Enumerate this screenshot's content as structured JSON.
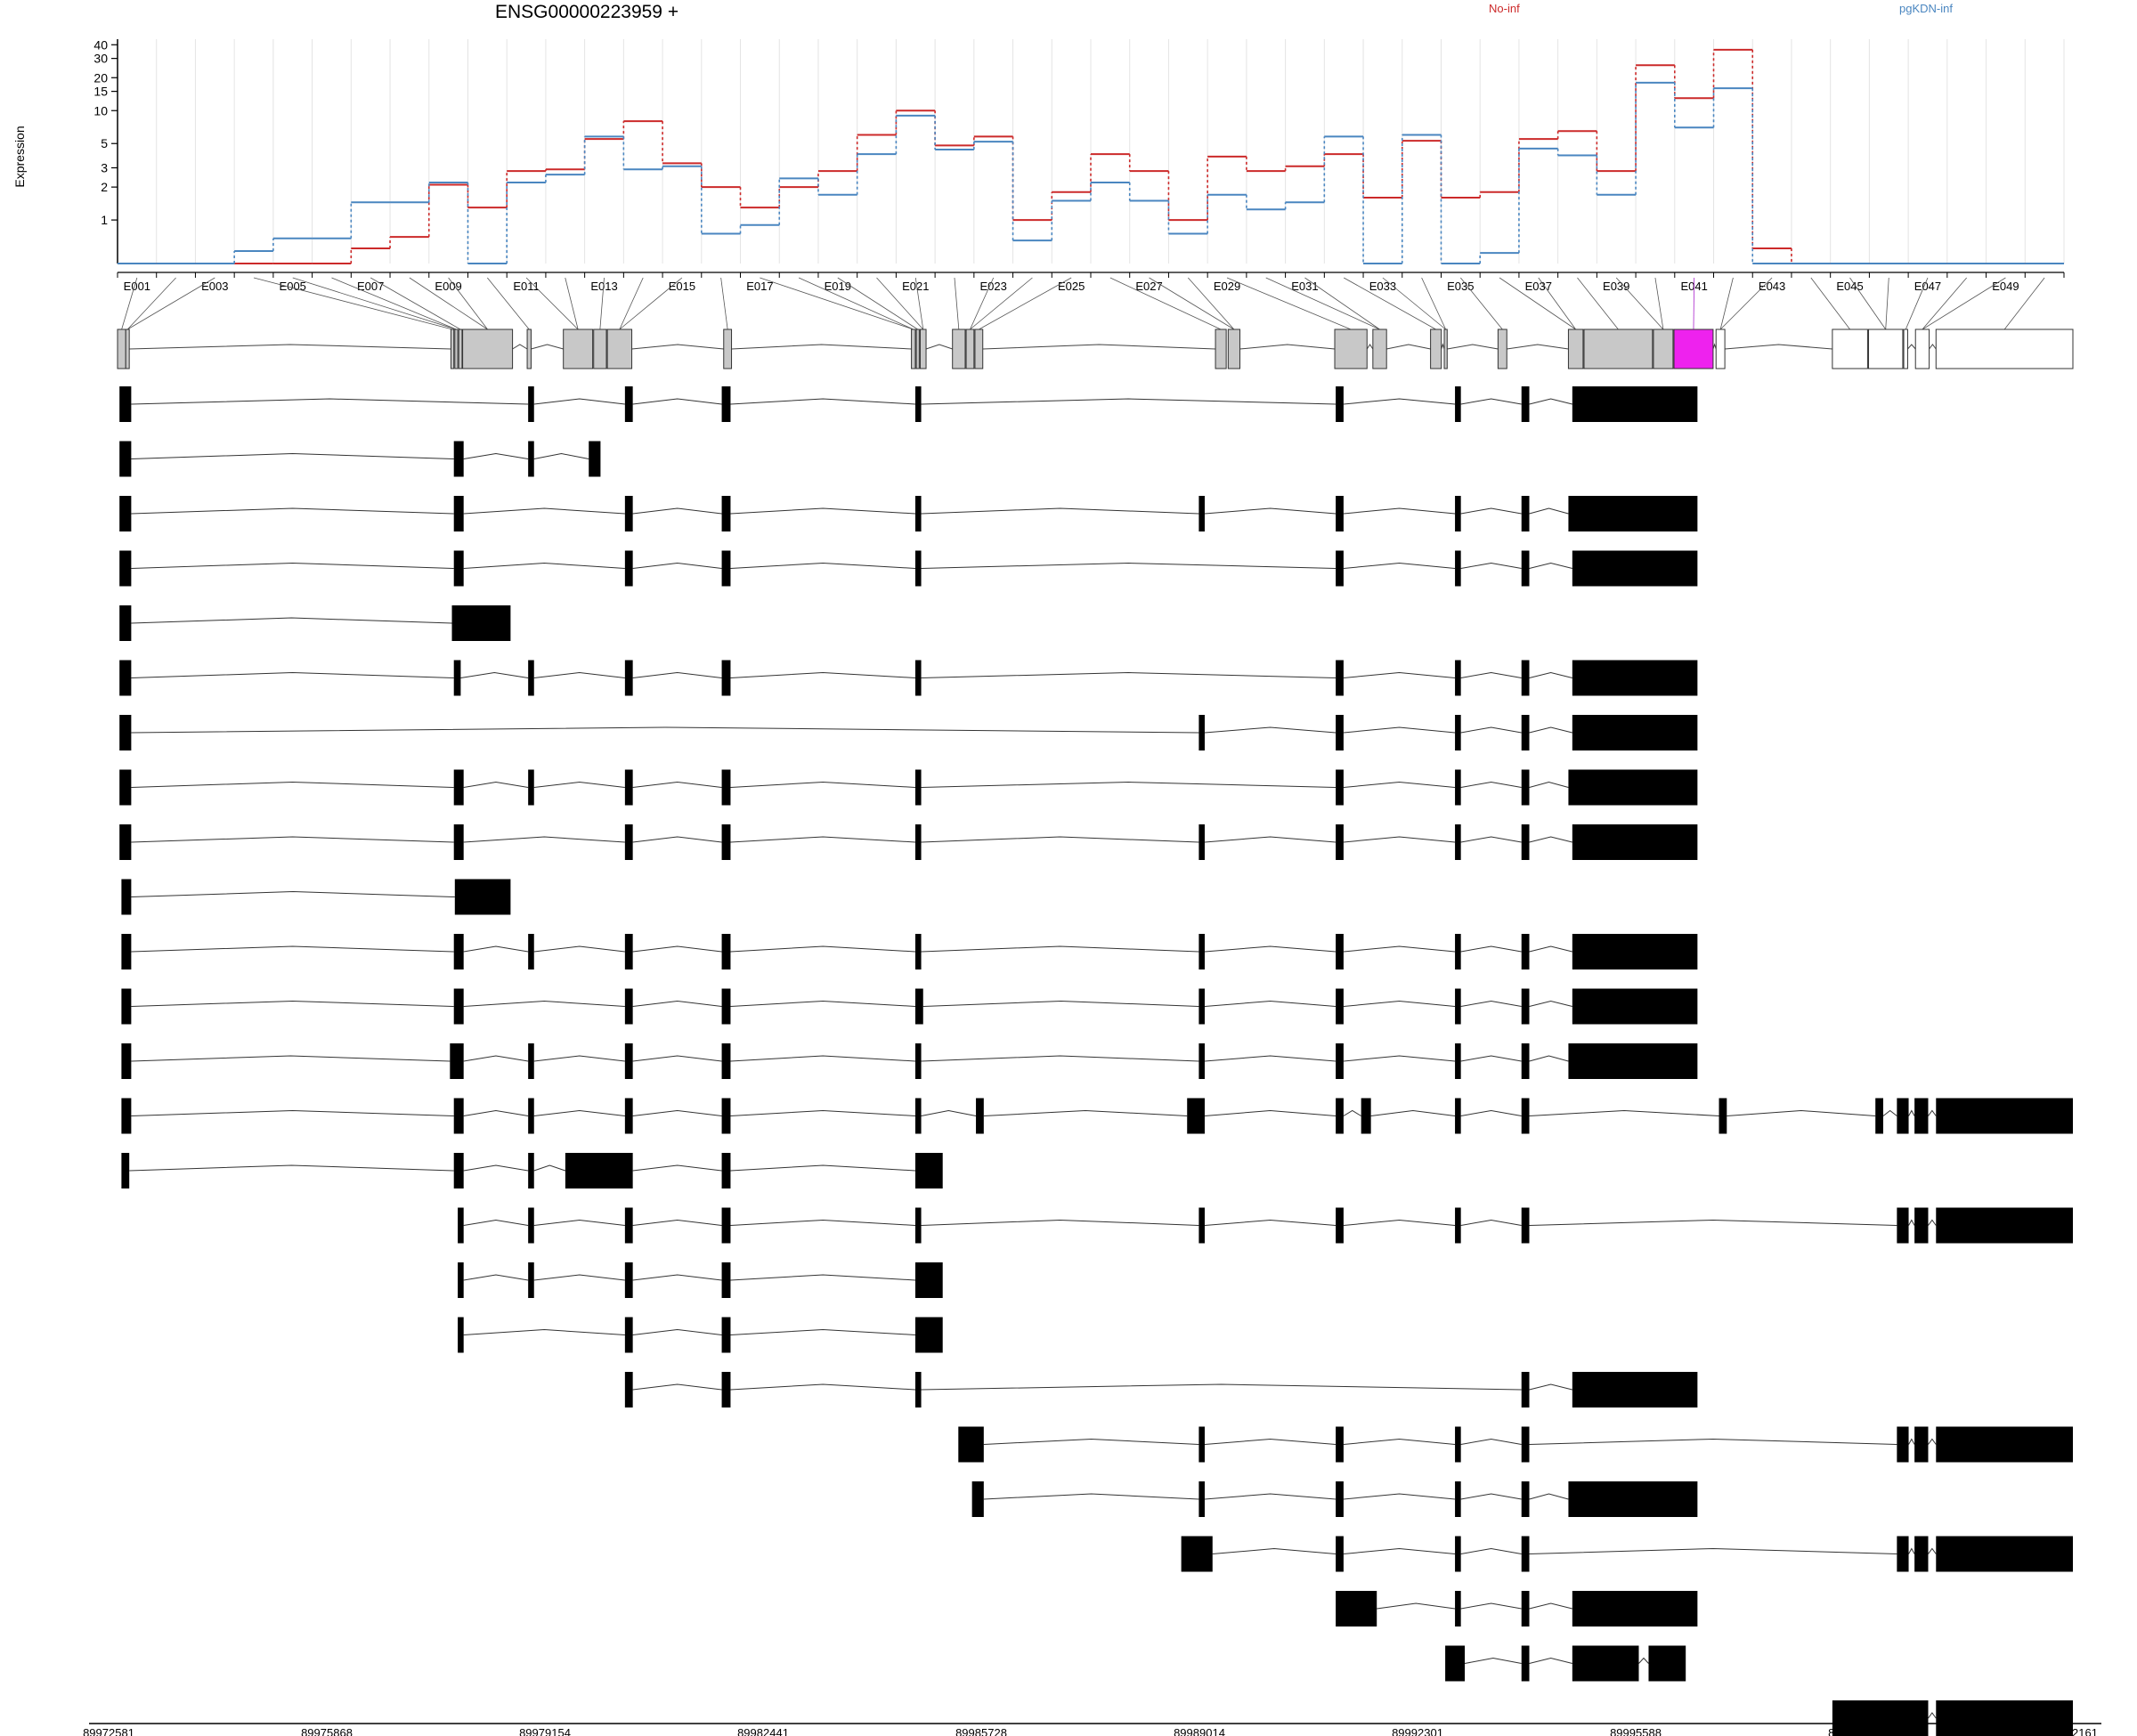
{
  "header": {
    "title": "ENSG00000223959 +",
    "legend_a": "No-inf",
    "legend_b": "pgKDN-inf"
  },
  "colors": {
    "no_inf": "#cc2a2a",
    "pgkdn_inf": "#4a86c0",
    "exon_tested": "#c8c8c8",
    "exon_untested": "#ffffff",
    "exon_significant": "#ee22ee",
    "transcript_block": "#000000"
  },
  "chart_data": {
    "type": "line",
    "title": "ENSG00000223959 +",
    "ylabel": "Expression",
    "yscale": "log",
    "ylim": [
      0.4,
      45
    ],
    "yticks": [
      1,
      2,
      3,
      5,
      10,
      15,
      20,
      30,
      40
    ],
    "grid": "vertical, light grey",
    "legend": "top-right",
    "exon_labels_shown": [
      "E001",
      "E003",
      "E005",
      "E007",
      "E009",
      "E011",
      "E013",
      "E015",
      "E017",
      "E019",
      "E021",
      "E023",
      "E025",
      "E027",
      "E029",
      "E031",
      "E033",
      "E035",
      "E037",
      "E039",
      "E041",
      "E043",
      "E045",
      "E047",
      "E049"
    ],
    "series": [
      {
        "name": "No-inf",
        "color": "#cc2a2a",
        "values": [
          0.4,
          0.4,
          0.4,
          0.4,
          0.4,
          0.4,
          0.55,
          0.7,
          2.1,
          1.3,
          2.8,
          2.9,
          5.5,
          8.0,
          3.3,
          2.0,
          1.3,
          2.0,
          2.8,
          6.0,
          10.0,
          4.8,
          5.8,
          1.0,
          1.8,
          4.0,
          2.8,
          1.0,
          3.8,
          2.8,
          3.1,
          4.0,
          1.6,
          5.3,
          1.6,
          1.8,
          5.5,
          6.5,
          2.8,
          26.0,
          13.0,
          36.0,
          0.55,
          0.4,
          0.4,
          0.4,
          0.4,
          0.4,
          0.4,
          0.4
        ]
      },
      {
        "name": "pgKDN-inf",
        "color": "#4a86c0",
        "values": [
          0.4,
          0.4,
          0.4,
          0.52,
          0.68,
          0.68,
          1.45,
          1.45,
          2.2,
          0.4,
          2.2,
          2.6,
          5.8,
          2.9,
          3.1,
          0.75,
          0.9,
          2.4,
          1.7,
          4.0,
          9.0,
          4.4,
          5.2,
          0.65,
          1.5,
          2.2,
          1.5,
          0.75,
          1.7,
          1.25,
          1.45,
          5.8,
          0.4,
          6.0,
          0.4,
          0.5,
          4.5,
          3.9,
          1.7,
          18.0,
          7.0,
          16.0,
          0.4,
          0.4,
          0.4,
          0.4,
          0.4,
          0.4,
          0.4,
          0.4
        ]
      }
    ],
    "genomic_axis_labels": [
      "89972581",
      "89975868",
      "89979154",
      "89982441",
      "89985728",
      "89989014",
      "89992301",
      "89995588",
      "89998874",
      "90002161"
    ],
    "gene_model": {
      "exons": [
        [
          0.0,
          0.42,
          "tested"
        ],
        [
          0.42,
          0.6,
          "tested"
        ],
        [
          17.05,
          17.2,
          "tested"
        ],
        [
          17.25,
          17.4,
          "tested"
        ],
        [
          17.45,
          17.62,
          "tested"
        ],
        [
          17.65,
          20.2,
          "tested"
        ],
        [
          20.95,
          21.15,
          "tested"
        ],
        [
          22.8,
          24.3,
          "tested"
        ],
        [
          24.35,
          25.0,
          "tested"
        ],
        [
          25.05,
          26.3,
          "tested"
        ],
        [
          31.0,
          31.4,
          "tested"
        ],
        [
          40.6,
          40.8,
          "tested"
        ],
        [
          40.85,
          41.0,
          "tested"
        ],
        [
          41.05,
          41.35,
          "tested"
        ],
        [
          42.7,
          43.35,
          "tested"
        ],
        [
          43.4,
          43.8,
          "tested"
        ],
        [
          43.85,
          44.25,
          "tested"
        ],
        [
          56.15,
          56.7,
          "tested"
        ],
        [
          56.8,
          57.4,
          "tested"
        ],
        [
          62.25,
          63.9,
          "tested"
        ],
        [
          64.2,
          64.9,
          "tested"
        ],
        [
          67.15,
          67.7,
          "tested"
        ],
        [
          67.85,
          68.0,
          "tested"
        ],
        [
          70.6,
          71.05,
          "tested"
        ],
        [
          74.2,
          74.95,
          "tested"
        ],
        [
          75.0,
          78.5,
          "tested"
        ],
        [
          78.55,
          79.55,
          "tested"
        ],
        [
          79.6,
          81.6,
          "significant"
        ],
        [
          81.75,
          82.2,
          "untested"
        ],
        [
          87.7,
          89.5,
          "untested"
        ],
        [
          89.55,
          91.3,
          "untested"
        ],
        [
          91.35,
          91.55,
          "untested"
        ],
        [
          91.95,
          92.65,
          "untested"
        ],
        [
          93.0,
          100.0,
          "untested"
        ]
      ]
    },
    "transcripts": [
      [
        [
          0.1,
          0.7
        ],
        [
          21.0,
          21.3
        ],
        [
          25.95,
          26.35
        ],
        [
          30.9,
          31.35
        ],
        [
          40.8,
          41.1
        ],
        [
          62.3,
          62.7
        ],
        [
          68.4,
          68.7
        ],
        [
          71.8,
          72.2
        ],
        [
          74.4,
          80.8
        ]
      ],
      [
        [
          0.1,
          0.7
        ],
        [
          17.2,
          17.7
        ],
        [
          21.0,
          21.3
        ],
        [
          24.1,
          24.7
        ]
      ],
      [
        [
          0.1,
          0.7
        ],
        [
          17.2,
          17.7
        ],
        [
          25.95,
          26.35
        ],
        [
          30.9,
          31.35
        ],
        [
          40.8,
          41.1
        ],
        [
          55.3,
          55.6
        ],
        [
          62.3,
          62.7
        ],
        [
          68.4,
          68.7
        ],
        [
          71.8,
          72.2
        ],
        [
          74.2,
          80.8
        ]
      ],
      [
        [
          0.1,
          0.7
        ],
        [
          17.2,
          17.7
        ],
        [
          25.95,
          26.35
        ],
        [
          30.9,
          31.35
        ],
        [
          40.8,
          41.1
        ],
        [
          62.3,
          62.7
        ],
        [
          68.4,
          68.7
        ],
        [
          71.8,
          72.2
        ],
        [
          74.4,
          80.8
        ]
      ],
      [
        [
          0.1,
          0.7
        ],
        [
          17.1,
          20.1
        ]
      ],
      [
        [
          0.1,
          0.7
        ],
        [
          17.2,
          17.55
        ],
        [
          21.0,
          21.3
        ],
        [
          25.95,
          26.35
        ],
        [
          30.9,
          31.35
        ],
        [
          40.8,
          41.1
        ],
        [
          62.3,
          62.7
        ],
        [
          68.4,
          68.7
        ],
        [
          71.8,
          72.2
        ],
        [
          74.4,
          80.8
        ]
      ],
      [
        [
          0.1,
          0.7
        ],
        [
          55.3,
          55.6
        ],
        [
          62.3,
          62.7
        ],
        [
          68.4,
          68.7
        ],
        [
          71.8,
          72.2
        ],
        [
          74.4,
          80.8
        ]
      ],
      [
        [
          0.1,
          0.7
        ],
        [
          17.2,
          17.7
        ],
        [
          21.0,
          21.3
        ],
        [
          25.95,
          26.35
        ],
        [
          30.9,
          31.35
        ],
        [
          40.8,
          41.1
        ],
        [
          62.3,
          62.7
        ],
        [
          68.4,
          68.7
        ],
        [
          71.8,
          72.2
        ],
        [
          74.2,
          80.8
        ]
      ],
      [
        [
          0.1,
          0.7
        ],
        [
          17.2,
          17.7
        ],
        [
          25.95,
          26.35
        ],
        [
          30.9,
          31.35
        ],
        [
          40.8,
          41.1
        ],
        [
          55.3,
          55.6
        ],
        [
          62.3,
          62.7
        ],
        [
          68.4,
          68.7
        ],
        [
          71.8,
          72.2
        ],
        [
          74.4,
          80.8
        ]
      ],
      [
        [
          0.2,
          0.7
        ],
        [
          17.25,
          20.1
        ]
      ],
      [
        [
          0.2,
          0.7
        ],
        [
          17.2,
          17.7
        ],
        [
          21.0,
          21.3
        ],
        [
          25.95,
          26.35
        ],
        [
          30.9,
          31.35
        ],
        [
          40.8,
          41.1
        ],
        [
          55.3,
          55.6
        ],
        [
          62.3,
          62.7
        ],
        [
          68.4,
          68.7
        ],
        [
          71.8,
          72.2
        ],
        [
          74.4,
          80.8
        ]
      ],
      [
        [
          0.2,
          0.7
        ],
        [
          17.2,
          17.7
        ],
        [
          25.95,
          26.35
        ],
        [
          30.9,
          31.35
        ],
        [
          40.8,
          41.2
        ],
        [
          55.3,
          55.6
        ],
        [
          62.3,
          62.7
        ],
        [
          68.4,
          68.7
        ],
        [
          71.8,
          72.2
        ],
        [
          74.4,
          80.8
        ]
      ],
      [
        [
          0.2,
          0.7
        ],
        [
          17.0,
          17.7
        ],
        [
          21.0,
          21.3
        ],
        [
          25.95,
          26.35
        ],
        [
          30.9,
          31.35
        ],
        [
          40.8,
          41.1
        ],
        [
          55.3,
          55.6
        ],
        [
          62.3,
          62.7
        ],
        [
          68.4,
          68.7
        ],
        [
          71.8,
          72.2
        ],
        [
          74.2,
          80.8
        ]
      ],
      [
        [
          0.2,
          0.7
        ],
        [
          17.2,
          17.7
        ],
        [
          21.0,
          21.3
        ],
        [
          25.95,
          26.35
        ],
        [
          30.9,
          31.35
        ],
        [
          40.8,
          41.1
        ],
        [
          43.9,
          44.3
        ],
        [
          54.7,
          55.6
        ],
        [
          62.3,
          62.7
        ],
        [
          63.6,
          64.1
        ],
        [
          68.4,
          68.7
        ],
        [
          71.8,
          72.2
        ],
        [
          81.9,
          82.3
        ],
        [
          89.9,
          90.3
        ],
        [
          91.0,
          91.6
        ],
        [
          91.9,
          92.6
        ],
        [
          93.0,
          100.0
        ]
      ],
      [
        [
          0.2,
          0.6
        ],
        [
          17.2,
          17.7
        ],
        [
          21.0,
          21.3
        ],
        [
          22.9,
          26.35
        ],
        [
          30.9,
          31.35
        ],
        [
          40.8,
          42.2
        ]
      ],
      [
        [
          17.4,
          17.7
        ],
        [
          21.0,
          21.3
        ],
        [
          25.95,
          26.35
        ],
        [
          30.9,
          31.35
        ],
        [
          40.8,
          41.1
        ],
        [
          55.3,
          55.6
        ],
        [
          62.3,
          62.7
        ],
        [
          68.4,
          68.7
        ],
        [
          71.8,
          72.2
        ],
        [
          91.0,
          91.6
        ],
        [
          91.9,
          92.6
        ],
        [
          93.0,
          100.0
        ]
      ],
      [
        [
          17.4,
          17.7
        ],
        [
          21.0,
          21.3
        ],
        [
          25.95,
          26.35
        ],
        [
          30.9,
          31.35
        ],
        [
          40.8,
          42.2
        ]
      ],
      [
        [
          17.4,
          17.7
        ],
        [
          25.95,
          26.35
        ],
        [
          30.9,
          31.35
        ],
        [
          40.8,
          42.2
        ]
      ],
      [
        [
          25.95,
          26.35
        ],
        [
          30.9,
          31.35
        ],
        [
          40.8,
          41.1
        ],
        [
          71.8,
          72.2
        ],
        [
          74.4,
          80.8
        ]
      ],
      [
        [
          43.0,
          44.3
        ],
        [
          55.3,
          55.6
        ],
        [
          62.3,
          62.7
        ],
        [
          68.4,
          68.7
        ],
        [
          71.8,
          72.2
        ],
        [
          91.0,
          91.6
        ],
        [
          91.9,
          92.6
        ],
        [
          93.0,
          100.0
        ]
      ],
      [
        [
          43.7,
          44.3
        ],
        [
          55.3,
          55.6
        ],
        [
          62.3,
          62.7
        ],
        [
          68.4,
          68.7
        ],
        [
          71.8,
          72.2
        ],
        [
          74.2,
          80.8
        ]
      ],
      [
        [
          54.4,
          56.0
        ],
        [
          62.3,
          62.7
        ],
        [
          68.4,
          68.7
        ],
        [
          71.8,
          72.2
        ],
        [
          91.0,
          91.6
        ],
        [
          91.9,
          92.6
        ],
        [
          93.0,
          100.0
        ]
      ],
      [
        [
          62.3,
          64.4
        ],
        [
          68.4,
          68.7
        ],
        [
          71.8,
          72.2
        ],
        [
          74.4,
          80.8
        ]
      ],
      [
        [
          67.9,
          68.9
        ],
        [
          71.8,
          72.2
        ],
        [
          74.4,
          77.8
        ],
        [
          78.3,
          80.2
        ]
      ],
      [
        [
          87.7,
          92.6
        ],
        [
          93.0,
          100.0
        ]
      ]
    ]
  }
}
